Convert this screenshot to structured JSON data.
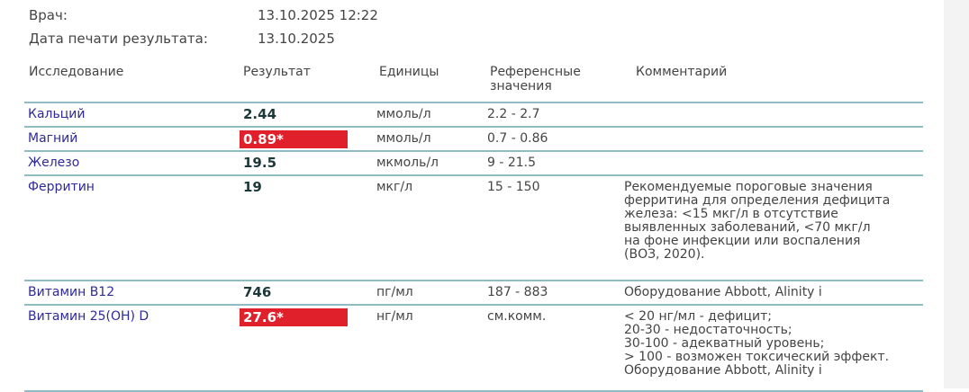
{
  "meta": {
    "doctor_label": "Врач:",
    "doctor_value": "13.10.2025 12:22",
    "print_date_label": "Дата печати результата:",
    "print_date_value": "13.10.2025"
  },
  "headers": {
    "test": "Исследование",
    "result": "Результат",
    "units": "Единицы",
    "reference": "Референсные\nзначения",
    "comment": "Комментарий"
  },
  "rows": [
    {
      "name": "Кальций",
      "result": "2.44",
      "flag": false,
      "units": "ммоль/л",
      "reference": "2.2 - 2.7",
      "comment": ""
    },
    {
      "name": "Магний",
      "result": "0.89*",
      "flag": true,
      "units": "ммоль/л",
      "reference": "0.7 - 0.86",
      "comment": ""
    },
    {
      "name": "Железо",
      "result": "19.5",
      "flag": false,
      "units": "мкмоль/л",
      "reference": "9 - 21.5",
      "comment": ""
    },
    {
      "name": "Ферритин",
      "result": "19",
      "flag": false,
      "units": "мкг/л",
      "reference": "15 - 150",
      "comment": "Рекомендуемые пороговые значения\nферритина для определения дефицита\nжелеза: <15 мкг/л в отсутствие\nвыявленных заболеваний, <70 мкг/л\nна фоне инфекции или воспаления\n(ВОЗ, 2020)."
    },
    {
      "name": "Витамин B12",
      "result": "746",
      "flag": false,
      "units": "пг/мл",
      "reference": "187 - 883",
      "comment": "Оборудование Abbott, Alinity i"
    },
    {
      "name": "Витамин 25(OH) D",
      "result": "27.6*",
      "flag": true,
      "units": "нг/мл",
      "reference": "см.комм.",
      "comment": "< 20 нг/мл - дефицит;\n20-30 - недостаточность;\n30-100 - адекватный уровень;\n> 100 - возможен токсический эффект.\nОборудование Abbott, Alinity i"
    }
  ],
  "colors": {
    "flag": "#e0202a",
    "name": "#2f2a9a",
    "rule": "#8fbcc2"
  }
}
